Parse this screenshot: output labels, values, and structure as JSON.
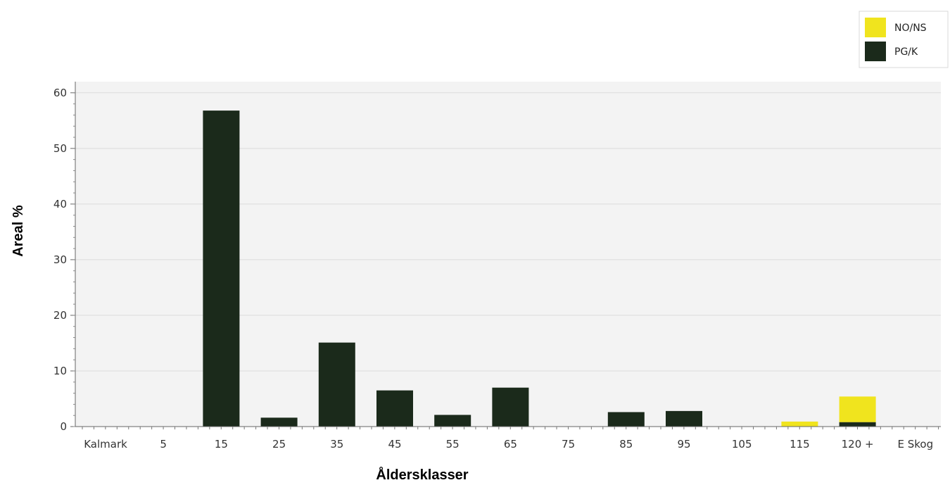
{
  "chart_data": {
    "type": "bar",
    "stacked": true,
    "xlabel": "Åldersklasser",
    "ylabel": "Areal %",
    "ylim": [
      0,
      62
    ],
    "yticks": [
      0,
      10,
      20,
      30,
      40,
      50,
      60
    ],
    "grid": true,
    "legend_position": "top-right",
    "categories": [
      "Kalmark",
      "5",
      "15",
      "25",
      "35",
      "45",
      "55",
      "65",
      "75",
      "85",
      "95",
      "105",
      "115",
      "120 +",
      "E Skog"
    ],
    "series": [
      {
        "name": "PG/K",
        "color": "#1b2a1b",
        "values": [
          0,
          0,
          56.8,
          1.6,
          15.1,
          6.5,
          2.1,
          7.0,
          0,
          2.6,
          2.8,
          0,
          0,
          0.8,
          0
        ]
      },
      {
        "name": "NO/NS",
        "color": "#f0e41e",
        "values": [
          0,
          0,
          0,
          0,
          0,
          0,
          0,
          0,
          0,
          0,
          0,
          0,
          0.9,
          4.6,
          0
        ]
      }
    ],
    "legend": [
      {
        "name": "NO/NS",
        "color": "#f0e41e"
      },
      {
        "name": "PG/K",
        "color": "#1b2a1b"
      }
    ]
  }
}
